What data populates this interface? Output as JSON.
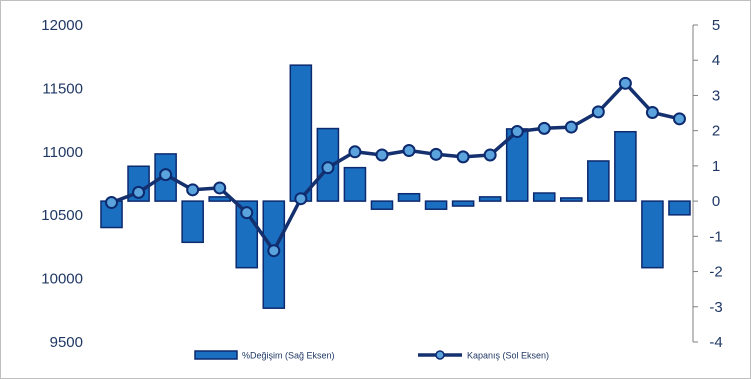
{
  "chart_data": {
    "type": "bar+line",
    "x_count": 22,
    "series": [
      {
        "name": "%Değişim (Sağ Eksen)",
        "type": "bar",
        "axis": "right",
        "values": [
          -0.75,
          0.99,
          1.34,
          -1.17,
          0.12,
          -1.89,
          -3.04,
          3.86,
          2.06,
          0.95,
          -0.23,
          0.21,
          -0.23,
          -0.14,
          0.12,
          2.05,
          0.23,
          0.09,
          1.14,
          1.97,
          -1.89,
          -0.39
        ]
      },
      {
        "name": "Kapanış (Sol Eksen)",
        "type": "line",
        "axis": "left",
        "values": [
          10600,
          10680,
          10820,
          10700,
          10715,
          10520,
          10220,
          10630,
          10875,
          11000,
          10975,
          11010,
          10980,
          10960,
          10975,
          11160,
          11185,
          11195,
          11315,
          11540,
          11310,
          11260
        ]
      }
    ],
    "left_axis": {
      "ylim": [
        9500,
        12000
      ],
      "ticks": [
        "12000",
        "11500",
        "11000",
        "10500",
        "10000",
        "9500"
      ]
    },
    "right_axis": {
      "ylim": [
        -4,
        5
      ],
      "ticks": [
        "5",
        "4",
        "3",
        "2",
        "1",
        "0",
        "-1",
        "-2",
        "-3",
        "-4"
      ]
    },
    "legend": [
      "%Değişim (Sağ Eksen)",
      "Kapanış (Sol Eksen)"
    ],
    "legend_position": "bottom",
    "grid": false,
    "colors": {
      "bar_fill": "#1b6fc0",
      "bar_stroke": "#0d2a6e",
      "line": "#14306e",
      "marker_fill": "#5ba3dd",
      "marker_stroke": "#0d2a6e"
    }
  }
}
